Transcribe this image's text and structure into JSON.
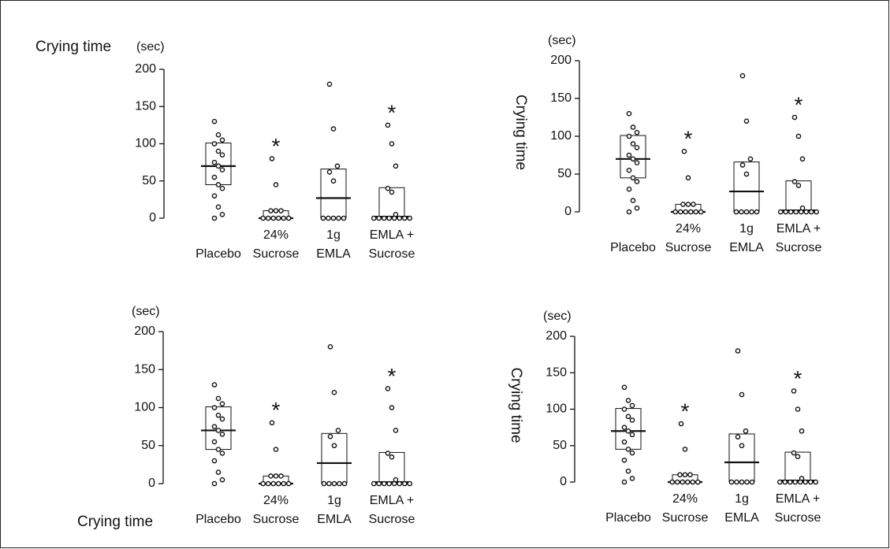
{
  "chart_data": [
    {
      "type": "strip",
      "ylabel": "Crying time",
      "yunit": "(sec)",
      "ylabel_position": "top",
      "categories": [
        [
          "Placebo"
        ],
        [
          "24%",
          "Sucrose"
        ],
        [
          "1g",
          "EMLA"
        ],
        [
          "EMLA +",
          "Sucrose"
        ]
      ],
      "ylim": [
        0,
        200
      ],
      "yticks": [
        0,
        50,
        100,
        150,
        200
      ],
      "significance_label": "*",
      "groups": [
        {
          "values": [
            130,
            112,
            105,
            100,
            90,
            85,
            75,
            70,
            65,
            55,
            45,
            40,
            30,
            15,
            5,
            0
          ],
          "q1": 45,
          "median": 70,
          "q3": 101,
          "significant": false
        },
        {
          "values": [
            80,
            45,
            10,
            10,
            10,
            0,
            0,
            0,
            0,
            0,
            0
          ],
          "q1": 0,
          "median": 0,
          "q3": 10,
          "significant": true
        },
        {
          "values": [
            180,
            120,
            70,
            62,
            50,
            0,
            0,
            0,
            0,
            0
          ],
          "q1": 0,
          "median": 27,
          "q3": 66,
          "significant": false
        },
        {
          "values": [
            125,
            100,
            70,
            40,
            35,
            5,
            0,
            0,
            0,
            0,
            0,
            0,
            0,
            0
          ],
          "q1": 2,
          "median": 2,
          "q3": 41,
          "significant": true
        }
      ]
    },
    {
      "type": "strip",
      "ylabel": "Crying time",
      "yunit": "(sec)",
      "ylabel_position": "side",
      "categories": [
        [
          "Placebo"
        ],
        [
          "24%",
          "Sucrose"
        ],
        [
          "1g",
          "EMLA"
        ],
        [
          "EMLA +",
          "Sucrose"
        ]
      ],
      "ylim": [
        0,
        200
      ],
      "yticks": [
        0,
        50,
        100,
        150,
        200
      ],
      "significance_label": "*",
      "groups": [
        {
          "values": [
            130,
            112,
            105,
            100,
            90,
            85,
            75,
            70,
            65,
            55,
            45,
            40,
            30,
            15,
            5,
            0
          ],
          "q1": 45,
          "median": 70,
          "q3": 101,
          "significant": false
        },
        {
          "values": [
            80,
            45,
            10,
            10,
            10,
            0,
            0,
            0,
            0,
            0,
            0
          ],
          "q1": 0,
          "median": 0,
          "q3": 10,
          "significant": true
        },
        {
          "values": [
            180,
            120,
            70,
            62,
            50,
            0,
            0,
            0,
            0,
            0
          ],
          "q1": 0,
          "median": 27,
          "q3": 66,
          "significant": false
        },
        {
          "values": [
            125,
            100,
            70,
            40,
            35,
            5,
            0,
            0,
            0,
            0,
            0,
            0,
            0,
            0
          ],
          "q1": 2,
          "median": 2,
          "q3": 41,
          "significant": true
        }
      ]
    },
    {
      "type": "strip",
      "ylabel": "Crying time",
      "yunit": "(sec)",
      "ylabel_position": "bottom",
      "categories": [
        [
          "Placebo"
        ],
        [
          "24%",
          "Sucrose"
        ],
        [
          "1g",
          "EMLA"
        ],
        [
          "EMLA +",
          "Sucrose"
        ]
      ],
      "ylim": [
        0,
        200
      ],
      "yticks": [
        0,
        50,
        100,
        150,
        200
      ],
      "significance_label": "*",
      "groups": [
        {
          "values": [
            130,
            112,
            105,
            100,
            90,
            85,
            75,
            70,
            65,
            55,
            45,
            40,
            30,
            15,
            5,
            0
          ],
          "q1": 45,
          "median": 70,
          "q3": 101,
          "significant": false
        },
        {
          "values": [
            80,
            45,
            10,
            10,
            10,
            0,
            0,
            0,
            0,
            0,
            0
          ],
          "q1": 0,
          "median": 0,
          "q3": 10,
          "significant": true
        },
        {
          "values": [
            180,
            120,
            70,
            62,
            50,
            0,
            0,
            0,
            0,
            0
          ],
          "q1": 0,
          "median": 27,
          "q3": 66,
          "significant": false
        },
        {
          "values": [
            125,
            100,
            70,
            40,
            35,
            5,
            0,
            0,
            0,
            0,
            0,
            0,
            0,
            0
          ],
          "q1": 2,
          "median": 2,
          "q3": 41,
          "significant": true
        }
      ]
    },
    {
      "type": "strip",
      "ylabel": "Crying time",
      "yunit": "(sec)",
      "ylabel_position": "side",
      "categories": [
        [
          "Placebo"
        ],
        [
          "24%",
          "Sucrose"
        ],
        [
          "1g",
          "EMLA"
        ],
        [
          "EMLA +",
          "Sucrose"
        ]
      ],
      "ylim": [
        0,
        200
      ],
      "yticks": [
        0,
        50,
        100,
        150,
        200
      ],
      "significance_label": "*",
      "groups": [
        {
          "values": [
            130,
            112,
            105,
            100,
            90,
            85,
            75,
            70,
            65,
            55,
            45,
            40,
            30,
            15,
            5,
            0
          ],
          "q1": 45,
          "median": 70,
          "q3": 101,
          "significant": false
        },
        {
          "values": [
            80,
            45,
            10,
            10,
            10,
            0,
            0,
            0,
            0,
            0,
            0
          ],
          "q1": 0,
          "median": 0,
          "q3": 10,
          "significant": true
        },
        {
          "values": [
            180,
            120,
            70,
            62,
            50,
            0,
            0,
            0,
            0,
            0
          ],
          "q1": 0,
          "median": 27,
          "q3": 66,
          "significant": false
        },
        {
          "values": [
            125,
            100,
            70,
            40,
            35,
            5,
            0,
            0,
            0,
            0,
            0,
            0,
            0,
            0
          ],
          "q1": 2,
          "median": 2,
          "q3": 41,
          "significant": true
        }
      ]
    }
  ]
}
